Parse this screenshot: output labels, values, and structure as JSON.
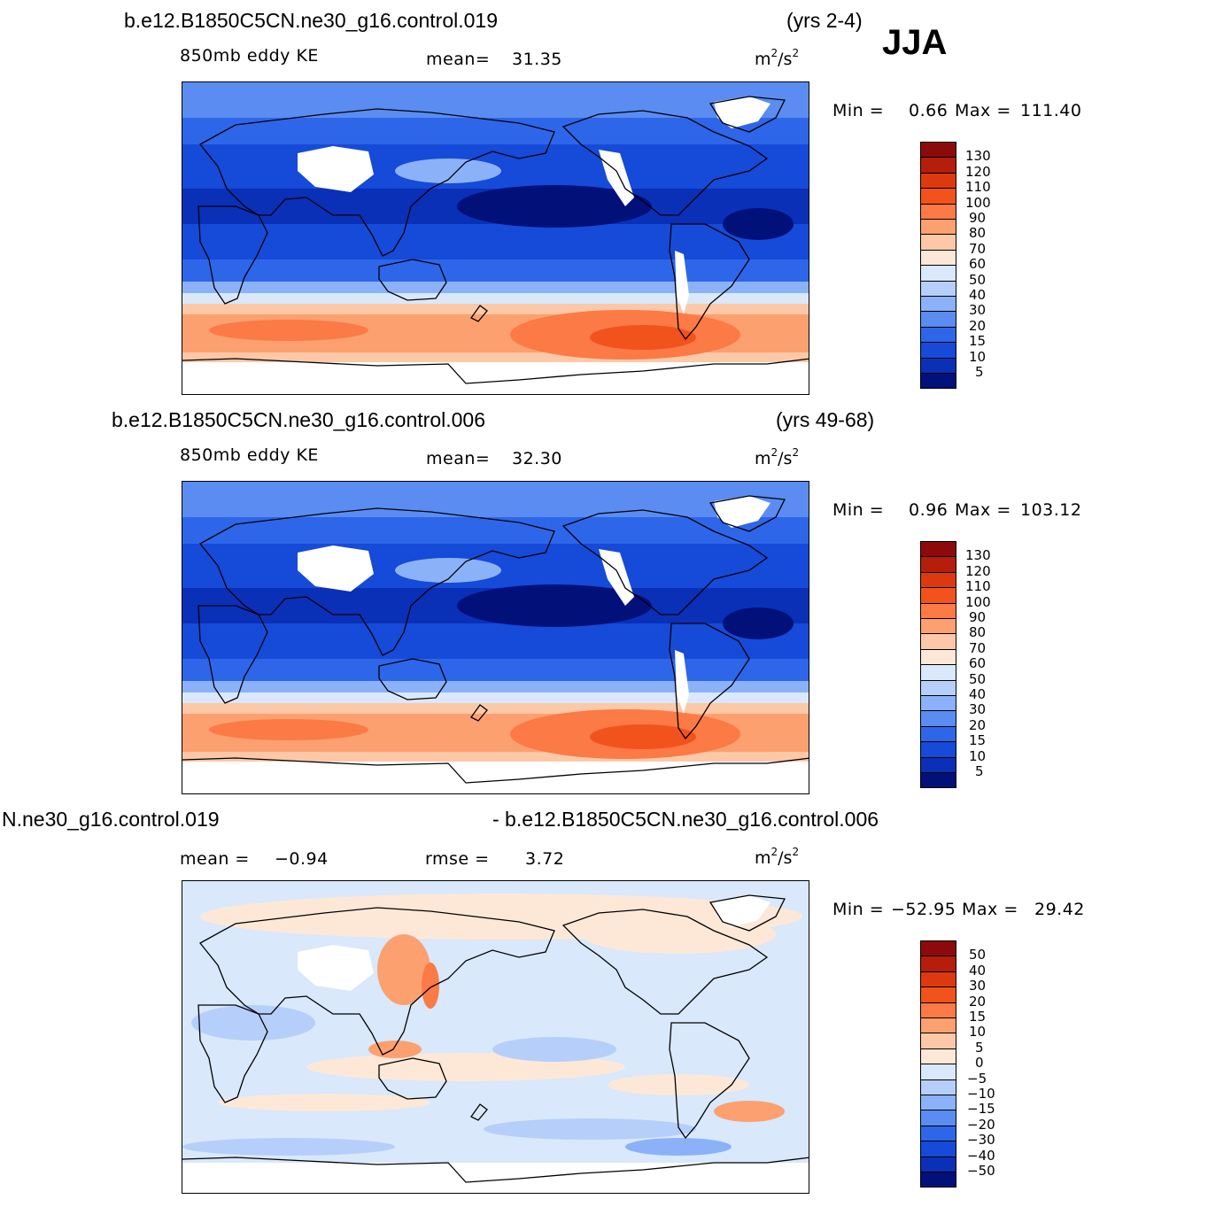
{
  "season": "JJA",
  "units_base": "m",
  "units_sup1": "2",
  "units_mid": "/s",
  "units_sup2": "2",
  "panels": [
    {
      "case": "b.e12.B1850C5CN.ne30_g16.control.019",
      "years": "(yrs 2-4)",
      "variable": "850mb  eddy  KE",
      "stat_label": "mean=",
      "stat_value": "31.35",
      "min_label": "Min  =",
      "min_value": "0.66",
      "max_label": "Max  =",
      "max_value": "111.40",
      "colorbar_labels": [
        "130",
        "120",
        "110",
        "100",
        "90",
        "80",
        "70",
        "60",
        "50",
        "40",
        "30",
        "20",
        "15",
        "10",
        "5"
      ],
      "colorbar_colors": [
        "#8c0a0a",
        "#b41e0a",
        "#dc3a0e",
        "#f2531c",
        "#fb7a45",
        "#fca070",
        "#fdc8a8",
        "#fde8d8",
        "#d9e8fb",
        "#b6cffa",
        "#8bb2f8",
        "#5a8cf2",
        "#2e66ea",
        "#164ad8",
        "#0a30b8",
        "#02107a"
      ]
    },
    {
      "case": "b.e12.B1850C5CN.ne30_g16.control.006",
      "years": "(yrs 49-68)",
      "variable": "850mb  eddy  KE",
      "stat_label": "mean=",
      "stat_value": "32.30",
      "min_label": "Min  =",
      "min_value": "0.96",
      "max_label": "Max  =",
      "max_value": "103.12",
      "colorbar_labels": [
        "130",
        "120",
        "110",
        "100",
        "90",
        "80",
        "70",
        "60",
        "50",
        "40",
        "30",
        "20",
        "15",
        "10",
        "5"
      ],
      "colorbar_colors": [
        "#8c0a0a",
        "#b41e0a",
        "#dc3a0e",
        "#f2531c",
        "#fb7a45",
        "#fca070",
        "#fdc8a8",
        "#fde8d8",
        "#d9e8fb",
        "#b6cffa",
        "#8bb2f8",
        "#5a8cf2",
        "#2e66ea",
        "#164ad8",
        "#0a30b8",
        "#02107a"
      ]
    },
    {
      "case_left": "N.ne30_g16.control.019",
      "case_right": "- b.e12.B1850C5CN.ne30_g16.control.006",
      "stat_label": "mean  =",
      "stat_value": "−0.94",
      "rmse_label": "rmse  =",
      "rmse_value": "3.72",
      "min_label": "Min  =",
      "min_value": "−52.95",
      "max_label": "Max  =",
      "max_value": "29.42",
      "colorbar_labels": [
        "50",
        "40",
        "30",
        "20",
        "15",
        "10",
        "5",
        "0",
        "−5",
        "−10",
        "−15",
        "−20",
        "−30",
        "−40",
        "−50"
      ],
      "colorbar_colors": [
        "#8c0a0a",
        "#b41e0a",
        "#dc3a0e",
        "#f2531c",
        "#fb7a45",
        "#fca070",
        "#fdc8a8",
        "#fde8d8",
        "#d9e8fb",
        "#b6cffa",
        "#8bb2f8",
        "#5a8cf2",
        "#2e66ea",
        "#164ad8",
        "#0a30b8",
        "#02107a"
      ]
    }
  ]
}
